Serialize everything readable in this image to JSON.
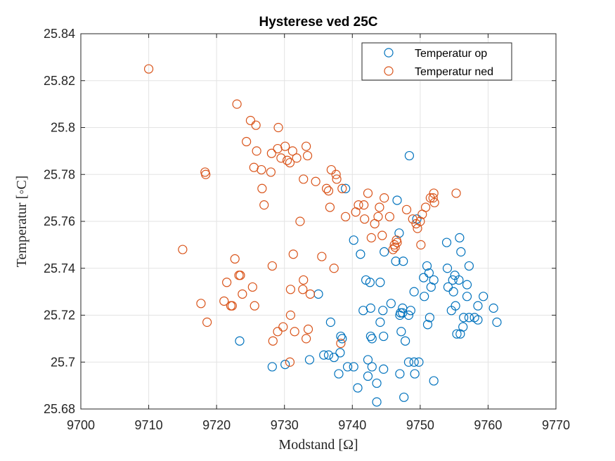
{
  "chart_data": {
    "type": "scatter",
    "title": "Hysterese ved 25C",
    "xlabel": "Modstand [Ω]",
    "ylabel": "Temperatur [◦C]",
    "xlim": [
      9700,
      9770
    ],
    "ylim": [
      25.68,
      25.84
    ],
    "xticks": [
      9700,
      9710,
      9720,
      9730,
      9740,
      9750,
      9760,
      9770
    ],
    "yticks": [
      25.68,
      25.7,
      25.72,
      25.74,
      25.76,
      25.78,
      25.8,
      25.82,
      25.84
    ],
    "xtick_labels": [
      "9700",
      "9710",
      "9720",
      "9730",
      "9740",
      "9750",
      "9760",
      "9770"
    ],
    "ytick_labels": [
      "25.68",
      "25.7",
      "25.72",
      "25.74",
      "25.76",
      "25.78",
      "25.8",
      "25.82",
      "25.84"
    ],
    "grid": true,
    "legend_position": "top-right",
    "marker": "open-circle",
    "series": [
      {
        "name": "Temperatur op",
        "color": "#0072BD",
        "points": [
          [
            9723.4,
            25.709
          ],
          [
            9728.2,
            25.698
          ],
          [
            9730.1,
            25.699
          ],
          [
            9733.7,
            25.701
          ],
          [
            9735.0,
            25.729
          ],
          [
            9735.8,
            25.703
          ],
          [
            9736.5,
            25.703
          ],
          [
            9736.8,
            25.717
          ],
          [
            9737.3,
            25.702
          ],
          [
            9738.0,
            25.695
          ],
          [
            9738.2,
            25.704
          ],
          [
            9738.3,
            25.711
          ],
          [
            9738.5,
            25.71
          ],
          [
            9739.0,
            25.774
          ],
          [
            9739.3,
            25.698
          ],
          [
            9740.2,
            25.698
          ],
          [
            9740.2,
            25.752
          ],
          [
            9740.8,
            25.689
          ],
          [
            9741.2,
            25.746
          ],
          [
            9741.6,
            25.722
          ],
          [
            9742.0,
            25.735
          ],
          [
            9742.3,
            25.694
          ],
          [
            9742.3,
            25.701
          ],
          [
            9742.6,
            25.734
          ],
          [
            9742.7,
            25.711
          ],
          [
            9742.7,
            25.723
          ],
          [
            9742.9,
            25.71
          ],
          [
            9742.9,
            25.698
          ],
          [
            9743.6,
            25.691
          ],
          [
            9743.6,
            25.683
          ],
          [
            9744.1,
            25.734
          ],
          [
            9744.1,
            25.717
          ],
          [
            9744.5,
            25.722
          ],
          [
            9744.6,
            25.711
          ],
          [
            9744.6,
            25.697
          ],
          [
            9744.7,
            25.747
          ],
          [
            9745.7,
            25.725
          ],
          [
            9746.4,
            25.743
          ],
          [
            9746.6,
            25.769
          ],
          [
            9746.9,
            25.755
          ],
          [
            9747.0,
            25.695
          ],
          [
            9747.0,
            25.72
          ],
          [
            9747.1,
            25.721
          ],
          [
            9747.2,
            25.713
          ],
          [
            9747.4,
            25.723
          ],
          [
            9747.4,
            25.721
          ],
          [
            9747.5,
            25.743
          ],
          [
            9747.6,
            25.685
          ],
          [
            9747.8,
            25.709
          ],
          [
            9748.3,
            25.72
          ],
          [
            9748.3,
            25.7
          ],
          [
            9748.4,
            25.788
          ],
          [
            9748.6,
            25.722
          ],
          [
            9749.1,
            25.73
          ],
          [
            9749.1,
            25.7
          ],
          [
            9749.2,
            25.695
          ],
          [
            9749.5,
            25.761
          ],
          [
            9749.8,
            25.7
          ],
          [
            9750.5,
            25.736
          ],
          [
            9750.6,
            25.728
          ],
          [
            9751.0,
            25.741
          ],
          [
            9751.1,
            25.716
          ],
          [
            9751.3,
            25.738
          ],
          [
            9751.4,
            25.719
          ],
          [
            9751.6,
            25.732
          ],
          [
            9752.0,
            25.735
          ],
          [
            9752.0,
            25.692
          ],
          [
            9753.9,
            25.751
          ],
          [
            9754.0,
            25.74
          ],
          [
            9754.1,
            25.732
          ],
          [
            9754.6,
            25.722
          ],
          [
            9754.8,
            25.735
          ],
          [
            9754.9,
            25.73
          ],
          [
            9755.1,
            25.737
          ],
          [
            9755.2,
            25.724
          ],
          [
            9755.4,
            25.712
          ],
          [
            9755.7,
            25.735
          ],
          [
            9755.8,
            25.753
          ],
          [
            9755.9,
            25.712
          ],
          [
            9756.0,
            25.747
          ],
          [
            9756.3,
            25.715
          ],
          [
            9756.4,
            25.719
          ],
          [
            9756.9,
            25.733
          ],
          [
            9756.9,
            25.728
          ],
          [
            9757.2,
            25.741
          ],
          [
            9757.2,
            25.719
          ],
          [
            9758.0,
            25.719
          ],
          [
            9758.5,
            25.718
          ],
          [
            9758.5,
            25.724
          ],
          [
            9759.3,
            25.728
          ],
          [
            9760.8,
            25.723
          ],
          [
            9761.3,
            25.717
          ]
        ]
      },
      {
        "name": "Temperatur ned",
        "color": "#D95319",
        "points": [
          [
            9710.0,
            25.825
          ],
          [
            9715.0,
            25.748
          ],
          [
            9717.7,
            25.725
          ],
          [
            9718.3,
            25.781
          ],
          [
            9718.4,
            25.78
          ],
          [
            9718.6,
            25.717
          ],
          [
            9721.1,
            25.726
          ],
          [
            9721.5,
            25.734
          ],
          [
            9722.1,
            25.724
          ],
          [
            9722.3,
            25.724
          ],
          [
            9722.7,
            25.744
          ],
          [
            9723.0,
            25.81
          ],
          [
            9723.3,
            25.737
          ],
          [
            9723.5,
            25.737
          ],
          [
            9723.8,
            25.729
          ],
          [
            9724.4,
            25.794
          ],
          [
            9725.0,
            25.803
          ],
          [
            9725.3,
            25.732
          ],
          [
            9725.5,
            25.783
          ],
          [
            9725.6,
            25.724
          ],
          [
            9725.8,
            25.801
          ],
          [
            9725.9,
            25.79
          ],
          [
            9726.6,
            25.782
          ],
          [
            9726.7,
            25.774
          ],
          [
            9727.0,
            25.767
          ],
          [
            9728.0,
            25.781
          ],
          [
            9728.1,
            25.789
          ],
          [
            9728.2,
            25.741
          ],
          [
            9728.3,
            25.709
          ],
          [
            9729.0,
            25.791
          ],
          [
            9729.0,
            25.713
          ],
          [
            9729.1,
            25.8
          ],
          [
            9729.5,
            25.787
          ],
          [
            9729.8,
            25.715
          ],
          [
            9730.1,
            25.792
          ],
          [
            9730.4,
            25.786
          ],
          [
            9730.8,
            25.785
          ],
          [
            9730.8,
            25.7
          ],
          [
            9730.9,
            25.731
          ],
          [
            9730.9,
            25.72
          ],
          [
            9731.2,
            25.79
          ],
          [
            9731.3,
            25.746
          ],
          [
            9731.5,
            25.713
          ],
          [
            9731.8,
            25.787
          ],
          [
            9732.3,
            25.76
          ],
          [
            9732.7,
            25.731
          ],
          [
            9732.8,
            25.735
          ],
          [
            9732.8,
            25.778
          ],
          [
            9733.2,
            25.792
          ],
          [
            9733.2,
            25.71
          ],
          [
            9733.4,
            25.788
          ],
          [
            9733.5,
            25.714
          ],
          [
            9733.8,
            25.729
          ],
          [
            9734.6,
            25.777
          ],
          [
            9735.5,
            25.745
          ],
          [
            9736.2,
            25.774
          ],
          [
            9736.5,
            25.773
          ],
          [
            9736.7,
            25.766
          ],
          [
            9736.9,
            25.782
          ],
          [
            9737.3,
            25.74
          ],
          [
            9737.6,
            25.78
          ],
          [
            9737.7,
            25.778
          ],
          [
            9738.3,
            25.708
          ],
          [
            9738.5,
            25.774
          ],
          [
            9739.0,
            25.762
          ],
          [
            9740.5,
            25.764
          ],
          [
            9740.9,
            25.767
          ],
          [
            9741.7,
            25.767
          ],
          [
            9741.8,
            25.761
          ],
          [
            9742.3,
            25.772
          ],
          [
            9742.8,
            25.753
          ],
          [
            9743.3,
            25.759
          ],
          [
            9743.8,
            25.762
          ],
          [
            9744.0,
            25.766
          ],
          [
            9744.4,
            25.754
          ],
          [
            9744.7,
            25.77
          ],
          [
            9745.5,
            25.762
          ],
          [
            9746.0,
            25.748
          ],
          [
            9746.2,
            25.75
          ],
          [
            9746.3,
            25.749
          ],
          [
            9746.5,
            25.752
          ],
          [
            9746.6,
            25.751
          ],
          [
            9748.0,
            25.765
          ],
          [
            9748.9,
            25.761
          ],
          [
            9749.4,
            25.759
          ],
          [
            9749.6,
            25.757
          ],
          [
            9750.0,
            25.76
          ],
          [
            9750.1,
            25.75
          ],
          [
            9750.3,
            25.763
          ],
          [
            9750.8,
            25.766
          ],
          [
            9751.5,
            25.77
          ],
          [
            9751.9,
            25.77
          ],
          [
            9752.0,
            25.772
          ],
          [
            9752.1,
            25.768
          ],
          [
            9755.3,
            25.772
          ]
        ]
      }
    ]
  }
}
